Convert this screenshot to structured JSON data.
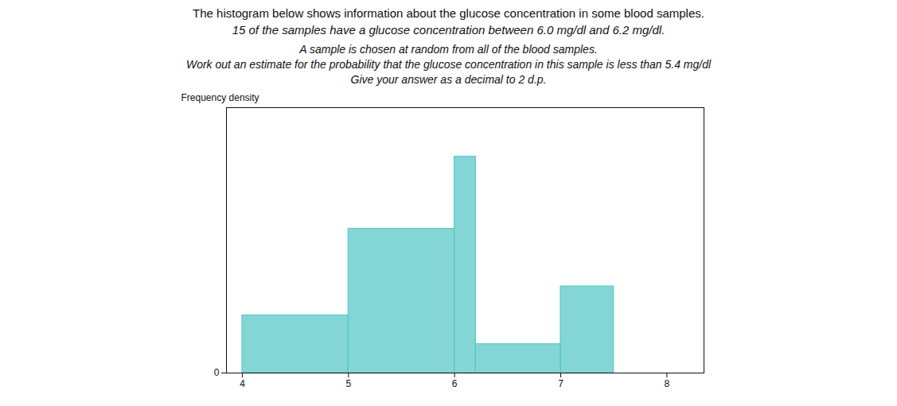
{
  "chart_data": {
    "type": "histogram",
    "title": "The histogram below shows information about the glucose concentration in some blood samples.",
    "subtitle": "15 of the samples have a glucose concentration between 6.0 mg/dl and 6.2 mg/dl.",
    "annotations": [
      "A sample is chosen at random from all of the blood samples.",
      "Work out an estimate for the probability that the glucose concentration in this sample is less than 5.4 mg/dl",
      "Give your answer as a decimal to 2 d.p."
    ],
    "bins": [
      4.0,
      5.0,
      6.0,
      6.2,
      7.0,
      7.5
    ],
    "values": [
      20,
      50,
      75,
      10,
      30
    ],
    "color": "#5bc8c8",
    "ylabel": "Frequency density",
    "xlim": [
      3.85,
      8.35
    ],
    "ylim": [
      0,
      92
    ],
    "xticks": [
      4,
      5,
      6,
      7,
      8
    ],
    "yticks": [
      0
    ],
    "grid": false
  }
}
